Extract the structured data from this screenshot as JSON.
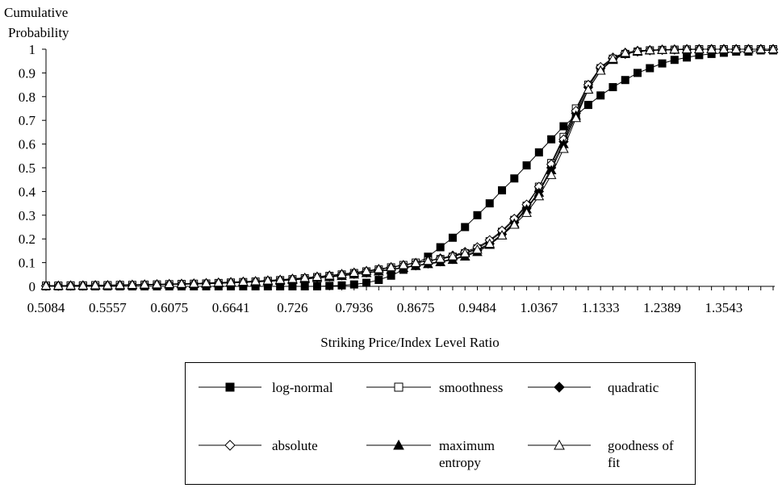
{
  "chart_data": {
    "type": "line",
    "title": "",
    "ylabel": "Cumulative Probability",
    "xlabel": "Striking Price/Index Level Ratio",
    "ylim": [
      0,
      1
    ],
    "y_ticks": [
      "0",
      "0.1",
      "0.2",
      "0.3",
      "0.4",
      "0.5",
      "0.6",
      "0.7",
      "0.8",
      "0.9",
      "1"
    ],
    "x_tick_labels": [
      "0.5084",
      "0.5557",
      "0.6075",
      "0.6641",
      "0.726",
      "0.7936",
      "0.8675",
      "0.9484",
      "1.0367",
      "1.1333",
      "1.2389",
      "1.3543"
    ],
    "x": [
      0.5084,
      0.5176,
      0.5268,
      0.5361,
      0.5454,
      0.5557,
      0.5657,
      0.5763,
      0.5865,
      0.597,
      0.6075,
      0.6185,
      0.6295,
      0.6408,
      0.6521,
      0.6641,
      0.6759,
      0.6881,
      0.7005,
      0.7129,
      0.726,
      0.739,
      0.7524,
      0.7657,
      0.7797,
      0.7936,
      0.8081,
      0.8227,
      0.8375,
      0.8524,
      0.8675,
      0.8835,
      0.8993,
      0.9155,
      0.9318,
      0.9484,
      0.9655,
      0.9828,
      1.0003,
      1.0182,
      1.0367,
      1.0551,
      1.0741,
      1.0932,
      1.1129,
      1.1333,
      1.1536,
      1.1745,
      1.1956,
      1.2175,
      1.2389,
      1.2614,
      1.2843,
      1.3074,
      1.3304,
      1.3543,
      1.3786,
      1.4031,
      1.4278,
      1.4527
    ],
    "series": [
      {
        "name": "log-normal",
        "marker": "filled-square",
        "values": [
          0,
          0,
          0,
          0,
          0,
          0,
          0,
          0,
          0,
          0,
          0,
          0,
          0,
          0,
          0,
          0,
          0,
          0,
          0,
          0,
          0,
          0,
          0,
          0.002,
          0.004,
          0.008,
          0.015,
          0.027,
          0.045,
          0.07,
          0.095,
          0.125,
          0.165,
          0.205,
          0.25,
          0.3,
          0.35,
          0.405,
          0.455,
          0.51,
          0.565,
          0.62,
          0.675,
          0.72,
          0.765,
          0.805,
          0.84,
          0.87,
          0.9,
          0.92,
          0.94,
          0.955,
          0.965,
          0.975,
          0.98,
          0.985,
          0.99,
          0.99,
          0.995,
          0.995
        ]
      },
      {
        "name": "smoothness",
        "marker": "open-square",
        "values": [
          0.003,
          0.003,
          0.004,
          0.004,
          0.005,
          0.005,
          0.006,
          0.006,
          0.007,
          0.008,
          0.009,
          0.01,
          0.011,
          0.012,
          0.014,
          0.016,
          0.018,
          0.02,
          0.023,
          0.026,
          0.03,
          0.034,
          0.039,
          0.044,
          0.05,
          0.056,
          0.063,
          0.071,
          0.08,
          0.09,
          0.1,
          0.108,
          0.115,
          0.125,
          0.14,
          0.16,
          0.19,
          0.23,
          0.28,
          0.34,
          0.42,
          0.52,
          0.63,
          0.75,
          0.85,
          0.92,
          0.96,
          0.98,
          0.99,
          0.995,
          0.997,
          0.998,
          0.999,
          1,
          1,
          1,
          1,
          1,
          1,
          1
        ]
      },
      {
        "name": "quadratic",
        "marker": "filled-diamond",
        "values": [
          0.002,
          0.002,
          0.003,
          0.003,
          0.004,
          0.004,
          0.005,
          0.005,
          0.006,
          0.007,
          0.008,
          0.009,
          0.01,
          0.011,
          0.013,
          0.015,
          0.017,
          0.019,
          0.022,
          0.025,
          0.028,
          0.032,
          0.036,
          0.041,
          0.046,
          0.052,
          0.058,
          0.065,
          0.072,
          0.08,
          0.088,
          0.096,
          0.105,
          0.115,
          0.13,
          0.15,
          0.18,
          0.22,
          0.27,
          0.33,
          0.4,
          0.5,
          0.61,
          0.73,
          0.84,
          0.92,
          0.96,
          0.98,
          0.99,
          0.995,
          0.997,
          0.998,
          0.999,
          1,
          1,
          1,
          1,
          1,
          1,
          1
        ]
      },
      {
        "name": "absolute",
        "marker": "open-diamond",
        "values": [
          0.002,
          0.002,
          0.003,
          0.003,
          0.004,
          0.004,
          0.005,
          0.006,
          0.007,
          0.008,
          0.009,
          0.01,
          0.011,
          0.013,
          0.015,
          0.017,
          0.019,
          0.021,
          0.024,
          0.027,
          0.031,
          0.035,
          0.04,
          0.045,
          0.051,
          0.057,
          0.064,
          0.072,
          0.08,
          0.089,
          0.098,
          0.108,
          0.118,
          0.13,
          0.145,
          0.165,
          0.195,
          0.235,
          0.285,
          0.345,
          0.42,
          0.515,
          0.62,
          0.74,
          0.85,
          0.925,
          0.965,
          0.985,
          0.993,
          0.996,
          0.998,
          0.999,
          1,
          1,
          1,
          1,
          1,
          1,
          1,
          1
        ]
      },
      {
        "name": "maximum entropy",
        "marker": "filled-triangle",
        "values": [
          0.002,
          0.002,
          0.002,
          0.003,
          0.003,
          0.004,
          0.004,
          0.005,
          0.006,
          0.007,
          0.008,
          0.009,
          0.01,
          0.011,
          0.013,
          0.015,
          0.017,
          0.019,
          0.021,
          0.024,
          0.027,
          0.031,
          0.035,
          0.039,
          0.044,
          0.05,
          0.056,
          0.063,
          0.07,
          0.078,
          0.086,
          0.094,
          0.102,
          0.112,
          0.126,
          0.145,
          0.175,
          0.215,
          0.265,
          0.325,
          0.395,
          0.49,
          0.6,
          0.72,
          0.83,
          0.91,
          0.955,
          0.98,
          0.99,
          0.995,
          0.997,
          0.998,
          0.999,
          1,
          1,
          1,
          1,
          1,
          1,
          1
        ]
      },
      {
        "name": "goodness of fit",
        "marker": "open-triangle",
        "values": [
          0.003,
          0.003,
          0.004,
          0.004,
          0.005,
          0.005,
          0.006,
          0.007,
          0.008,
          0.009,
          0.01,
          0.011,
          0.012,
          0.014,
          0.016,
          0.018,
          0.02,
          0.022,
          0.025,
          0.028,
          0.032,
          0.036,
          0.041,
          0.046,
          0.052,
          0.058,
          0.065,
          0.073,
          0.081,
          0.09,
          0.099,
          0.108,
          0.117,
          0.127,
          0.14,
          0.155,
          0.18,
          0.215,
          0.26,
          0.31,
          0.38,
          0.47,
          0.58,
          0.71,
          0.83,
          0.91,
          0.96,
          0.985,
          0.993,
          0.996,
          0.998,
          0.999,
          1,
          1,
          1,
          1,
          1,
          1,
          1,
          1
        ]
      }
    ],
    "legend": {
      "placement": "bottom",
      "rows": [
        [
          {
            "label": "log-normal",
            "marker": "filled-square"
          },
          {
            "label": "smoothness",
            "marker": "open-square"
          },
          {
            "label": "quadratic",
            "marker": "filled-diamond"
          }
        ],
        [
          {
            "label": "absolute",
            "marker": "open-diamond"
          },
          {
            "label": "maximum\nentropy",
            "marker": "filled-triangle"
          },
          {
            "label": "goodness of\nfit",
            "marker": "open-triangle"
          }
        ]
      ]
    },
    "grid": false
  }
}
